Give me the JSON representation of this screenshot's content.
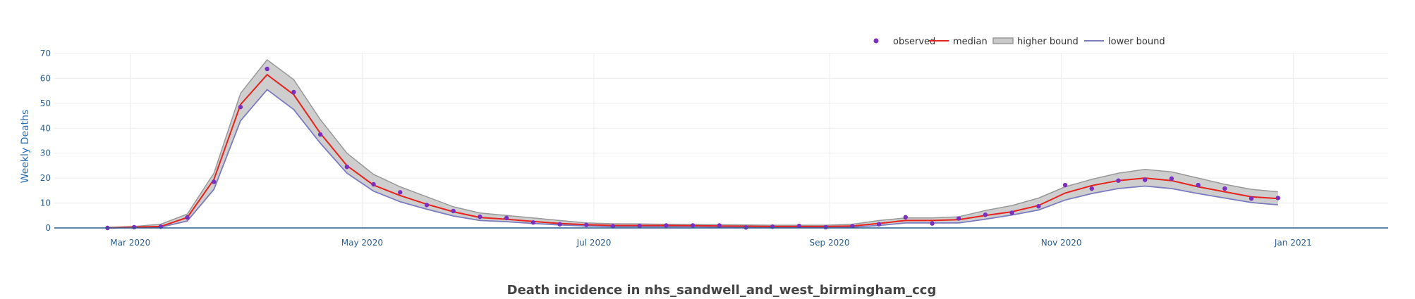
{
  "chart_data": {
    "type": "line",
    "title": "Death incidence in nhs_sandwell_and_west_birmingham_ccg",
    "xlabel": "",
    "ylabel": "Weekly Deaths",
    "xlim": [
      "2020-02-10",
      "2021-01-26"
    ],
    "ylim": [
      0,
      70
    ],
    "yticks": [
      0,
      10,
      20,
      30,
      40,
      50,
      60,
      70
    ],
    "xticks": [
      {
        "date": "2020-03-01",
        "label": "Mar 2020"
      },
      {
        "date": "2020-05-01",
        "label": "May 2020"
      },
      {
        "date": "2020-07-01",
        "label": "Jul 2020"
      },
      {
        "date": "2020-09-01",
        "label": "Sep 2020"
      },
      {
        "date": "2020-11-01",
        "label": "Nov 2020"
      },
      {
        "date": "2021-01-01",
        "label": "Jan 2021"
      }
    ],
    "grid": true,
    "legend_position": "top-right",
    "colors": {
      "observed": "#7b2fbf",
      "median": "#e8221c",
      "band_fill": "#c9c9c9",
      "band_line": "#999999",
      "lower_line": "#7b7bbf"
    },
    "x": [
      "2020-02-24",
      "2020-03-02",
      "2020-03-09",
      "2020-03-16",
      "2020-03-23",
      "2020-03-30",
      "2020-04-06",
      "2020-04-13",
      "2020-04-20",
      "2020-04-27",
      "2020-05-04",
      "2020-05-11",
      "2020-05-18",
      "2020-05-25",
      "2020-06-01",
      "2020-06-08",
      "2020-06-15",
      "2020-06-22",
      "2020-06-29",
      "2020-07-06",
      "2020-07-13",
      "2020-07-20",
      "2020-07-27",
      "2020-08-03",
      "2020-08-10",
      "2020-08-17",
      "2020-08-24",
      "2020-08-31",
      "2020-09-07",
      "2020-09-14",
      "2020-09-21",
      "2020-09-28",
      "2020-10-05",
      "2020-10-12",
      "2020-10-19",
      "2020-10-26",
      "2020-11-02",
      "2020-11-09",
      "2020-11-16",
      "2020-11-23",
      "2020-11-30",
      "2020-12-07",
      "2020-12-14",
      "2020-12-21",
      "2020-12-28"
    ],
    "series": [
      {
        "name": "observed",
        "style": "markers",
        "values": [
          0,
          0.3,
          0.5,
          4.2,
          18.5,
          48.5,
          63.8,
          54.5,
          37.5,
          24.5,
          17.5,
          14.3,
          9.2,
          6.8,
          4.5,
          4,
          2.2,
          1.5,
          1.2,
          0.7,
          0.8,
          1,
          1,
          1,
          0.2,
          0.5,
          0.8,
          0.3,
          0.7,
          1.5,
          4.3,
          1.8,
          3.8,
          5.3,
          6.1,
          8.7,
          17.2,
          15.8,
          19,
          19.3,
          19.8,
          17.2,
          15.8,
          11.8,
          12
        ]
      },
      {
        "name": "median",
        "style": "line",
        "values": [
          0,
          0.3,
          0.6,
          4.2,
          19.5,
          49.5,
          61.5,
          53.5,
          38,
          25,
          17.2,
          13,
          9.5,
          6.5,
          4.2,
          3.5,
          2.6,
          1.8,
          1.3,
          1,
          1,
          1,
          0.9,
          0.8,
          0.7,
          0.6,
          0.6,
          0.6,
          0.8,
          1.8,
          3,
          3,
          3.3,
          5,
          6.5,
          9,
          14,
          17,
          19,
          20,
          19,
          16.5,
          14.5,
          12.5,
          11.8
        ]
      },
      {
        "name": "higher bound",
        "style": "band-upper",
        "values": [
          0.2,
          0.6,
          1.5,
          5.6,
          22,
          54,
          67.5,
          59.5,
          43.5,
          30,
          21.5,
          16.5,
          12.5,
          8.5,
          6,
          5,
          4,
          3,
          2,
          1.7,
          1.6,
          1.5,
          1.4,
          1.3,
          1.2,
          1.1,
          1.1,
          1.1,
          1.5,
          3,
          4,
          4,
          4.5,
          7,
          9,
          12,
          16.5,
          19.5,
          22,
          23.5,
          22.5,
          20,
          17.5,
          15.5,
          14.5
        ]
      },
      {
        "name": "lower bound",
        "style": "line",
        "values": [
          0,
          0.1,
          0.3,
          2.8,
          15.5,
          43,
          55.5,
          47.5,
          34,
          22,
          14.8,
          10.5,
          7.5,
          4.8,
          3,
          2.5,
          1.8,
          1.2,
          0.8,
          0.5,
          0.5,
          0.5,
          0.5,
          0.4,
          0.3,
          0.3,
          0.3,
          0.3,
          0.3,
          1,
          2,
          2,
          2,
          3.5,
          5.2,
          7.2,
          11.2,
          13.8,
          15.8,
          16.8,
          15.8,
          13.8,
          12,
          10.2,
          9.3
        ]
      }
    ]
  }
}
